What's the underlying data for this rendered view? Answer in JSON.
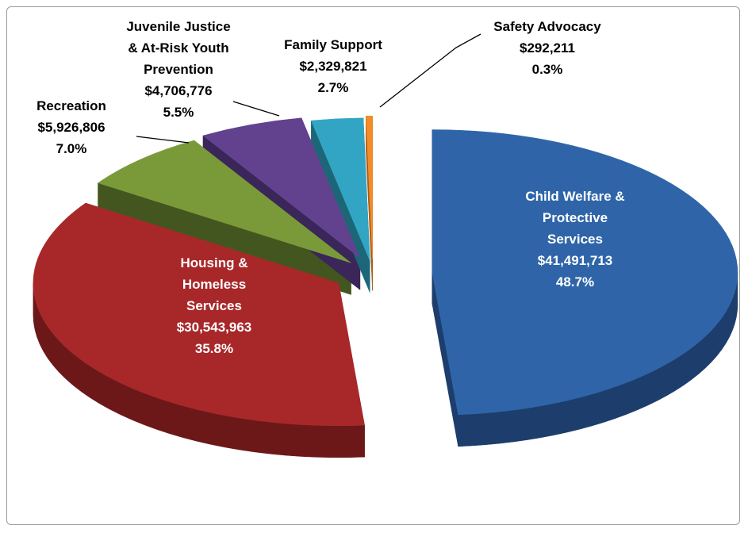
{
  "chart_data": {
    "type": "pie",
    "categories": [
      "Child Welfare & Protective Services",
      "Housing & Homeless Services",
      "Recreation",
      "Juvenile Justice & At-Risk Youth Prevention",
      "Family Support",
      "Safety Advocacy"
    ],
    "values": [
      41491713,
      30543963,
      5926806,
      4706776,
      2329821,
      292211
    ],
    "value_labels": [
      "$41,491,713",
      "$30,543,963",
      "$5,926,806",
      "$4,706,776",
      "$2,329,821",
      "$292,211"
    ],
    "percents": [
      48.7,
      35.8,
      7.0,
      5.5,
      2.7,
      0.3
    ],
    "percent_labels": [
      "48.7%",
      "35.8%",
      "7.0%",
      "5.5%",
      "2.7%",
      "0.3%"
    ],
    "colors": [
      "#2f65a8",
      "#a8282a",
      "#7a9a3a",
      "#62428f",
      "#33a5c4",
      "#f28c28"
    ],
    "side_colors": [
      "#1d3e6c",
      "#6c1819",
      "#44561f",
      "#3a2658",
      "#1d6678",
      "#a85a12"
    ]
  }
}
